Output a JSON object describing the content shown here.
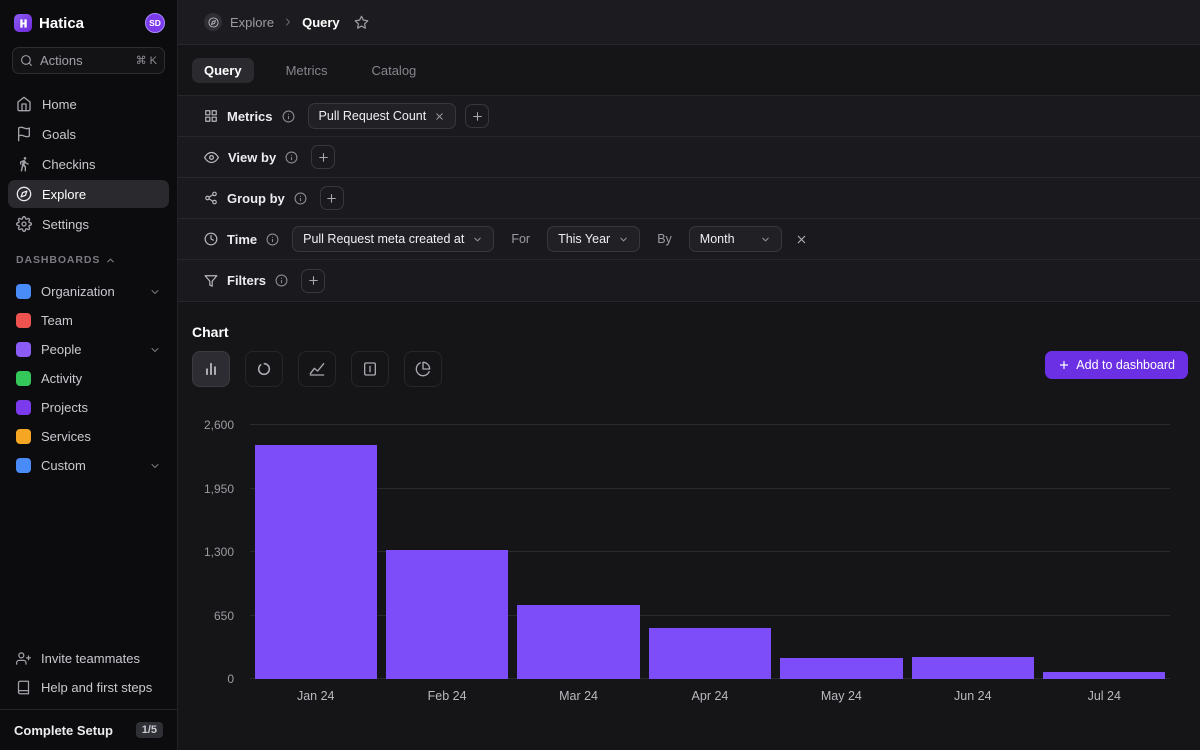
{
  "app": {
    "name": "Hatica",
    "avatar_initials": "SD"
  },
  "colors": {
    "accent": "#7c3aed",
    "add_button": "#6c30e4",
    "bar": "#7d4df9"
  },
  "sidebar": {
    "search": {
      "label": "Actions",
      "shortcut": "⌘ K"
    },
    "nav": [
      {
        "label": "Home"
      },
      {
        "label": "Goals"
      },
      {
        "label": "Checkins"
      },
      {
        "label": "Explore"
      },
      {
        "label": "Settings"
      }
    ],
    "dashboards_header": "DASHBOARDS",
    "dashboards": [
      {
        "label": "Organization",
        "color": "#4a8cf7"
      },
      {
        "label": "Team",
        "color": "#ef5350"
      },
      {
        "label": "People",
        "color": "#8b5cf6"
      },
      {
        "label": "Activity",
        "color": "#34c759"
      },
      {
        "label": "Projects",
        "color": "#7c3aed"
      },
      {
        "label": "Services",
        "color": "#f5a623"
      },
      {
        "label": "Custom",
        "color": "#4a8cf7"
      }
    ],
    "footer": {
      "invite": "Invite teammates",
      "help": "Help and first steps"
    },
    "setup": {
      "label": "Complete Setup",
      "progress": "1/5"
    }
  },
  "header": {
    "breadcrumb_parent": "Explore",
    "breadcrumb_current": "Query"
  },
  "tabs": [
    {
      "label": "Query"
    },
    {
      "label": "Metrics"
    },
    {
      "label": "Catalog"
    }
  ],
  "query_builder": {
    "metrics": {
      "label": "Metrics",
      "chips": [
        "Pull Request Count"
      ]
    },
    "view_by": {
      "label": "View by"
    },
    "group_by": {
      "label": "Group by"
    },
    "time": {
      "label": "Time",
      "field": "Pull Request meta created at",
      "for_label": "For",
      "range": "This Year",
      "by_label": "By",
      "granularity": "Month"
    },
    "filters": {
      "label": "Filters"
    }
  },
  "chart_section": {
    "title": "Chart",
    "add_button": "Add to dashboard"
  },
  "chart_data": {
    "type": "bar",
    "title": "",
    "series_name": "Pull Request Count",
    "categories": [
      "Jan 24",
      "Feb 24",
      "Mar 24",
      "Apr 24",
      "May 24",
      "Jun 24",
      "Jul 24"
    ],
    "values": [
      2400,
      1320,
      760,
      520,
      220,
      230,
      75
    ],
    "yticks": [
      0,
      650,
      1300,
      1950,
      2600
    ],
    "ylim": [
      0,
      2600
    ],
    "bar_color": "#7d4df9",
    "grid": true,
    "legend": false
  }
}
